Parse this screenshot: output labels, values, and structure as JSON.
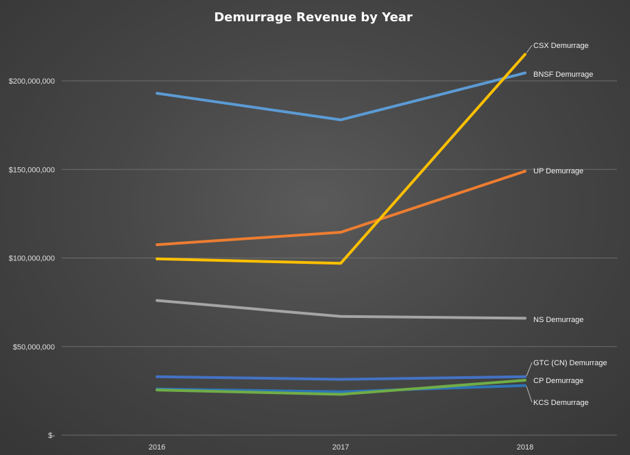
{
  "chart_data": {
    "type": "line",
    "title": "Demurrage Revenue by Year",
    "xlabel": "",
    "ylabel": "",
    "categories": [
      "2016",
      "2017",
      "2018"
    ],
    "ylim": [
      0,
      200000000
    ],
    "y_ticks": [
      0,
      50000000,
      100000000,
      150000000,
      200000000
    ],
    "y_tick_labels": [
      "$-",
      "$50,000,000",
      "$100,000,000",
      "$150,000,000",
      "$200,000,000"
    ],
    "grid": true,
    "legend": "labels at right end of lines",
    "series": [
      {
        "name": "CSX Demurrage",
        "color": "#ffc000",
        "values": [
          99500000,
          97000000,
          215000000
        ]
      },
      {
        "name": "BNSF Demurrage",
        "color": "#5b9bd5",
        "values": [
          193000000,
          178000000,
          204500000
        ]
      },
      {
        "name": "UP Demurrage",
        "color": "#ed7d31",
        "values": [
          107500000,
          114500000,
          149000000
        ]
      },
      {
        "name": "NS Demurrage",
        "color": "#a5a5a5",
        "values": [
          76000000,
          67000000,
          66000000
        ]
      },
      {
        "name": "GTC (CN) Demurrage",
        "color": "#4472c4",
        "values": [
          33000000,
          31500000,
          33000000
        ]
      },
      {
        "name": "CP Demurrage",
        "color": "#70ad47",
        "values": [
          25500000,
          23000000,
          31000000
        ]
      },
      {
        "name": "KCS Demurrage",
        "color": "#2e75b6",
        "values": [
          26000000,
          24500000,
          28000000
        ]
      }
    ]
  }
}
